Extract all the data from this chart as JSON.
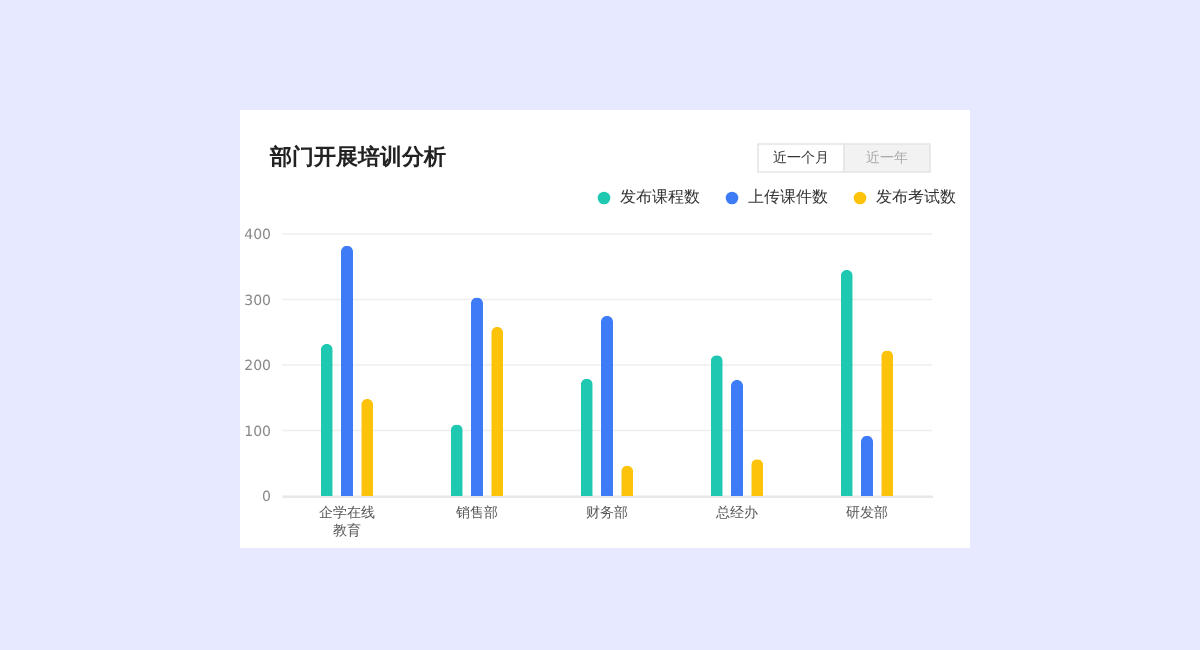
{
  "chart_data": {
    "type": "bar",
    "title": "部门开展培训分析",
    "categories": [
      "企学在线教育",
      "销售部",
      "财务部",
      "总经办",
      "研发部"
    ],
    "series": [
      {
        "name": "发布课程数",
        "color": "#1fc8b0",
        "values": [
          232,
          109,
          179,
          215,
          345
        ]
      },
      {
        "name": "上传课件数",
        "color": "#3d7bf7",
        "values": [
          382,
          303,
          275,
          177,
          92
        ]
      },
      {
        "name": "发布考试数",
        "color": "#fcc30a",
        "values": [
          148,
          258,
          46,
          56,
          222
        ]
      }
    ],
    "ylim": [
      0,
      400
    ],
    "yticks": [
      0,
      100,
      200,
      300,
      400
    ],
    "grid": "y",
    "legend": "top right",
    "annotations": [
      "近一个月",
      "近一年"
    ]
  }
}
